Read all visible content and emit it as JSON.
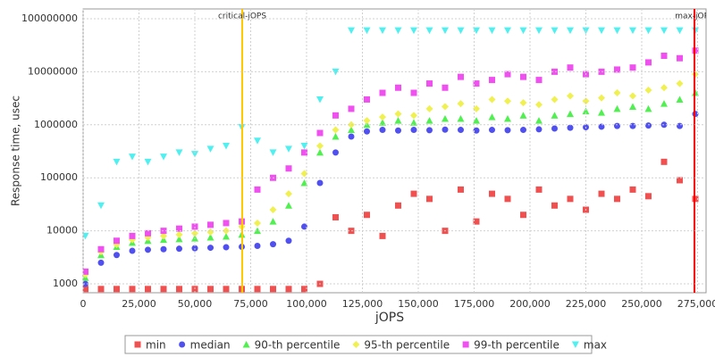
{
  "chart_data": {
    "type": "scatter",
    "ylabel": "Response time, usec",
    "xlabel": "jOPS",
    "log_y": true,
    "grid": true,
    "legend": "bottom",
    "xlim": [
      0,
      278800
    ],
    "ylim": [
      680,
      153000000
    ],
    "xticks": [
      0,
      {
        "value": 25000,
        "label": "25,000"
      },
      {
        "value": 50000,
        "label": "50,000"
      },
      {
        "value": 75000,
        "label": "75,000"
      },
      {
        "value": 100000,
        "label": "100,000"
      },
      {
        "value": 125000,
        "label": "125,000"
      },
      {
        "value": 150000,
        "label": "150,000"
      },
      {
        "value": 175000,
        "label": "175,000"
      },
      {
        "value": 200000,
        "label": "200,000"
      },
      {
        "value": 225000,
        "label": "225,000"
      },
      {
        "value": 250000,
        "label": "250,000"
      },
      {
        "value": 275000,
        "label": "275,000"
      }
    ],
    "yticks": [
      1000,
      10000,
      100000,
      1000000,
      10000000,
      100000000
    ],
    "vlines": [
      {
        "label": "critical-jOPS",
        "value": 71200,
        "color": "#ffc800"
      },
      {
        "label": "max-jOPS",
        "value": 273600,
        "color": "#ff0000"
      }
    ],
    "x": [
      1000,
      8000,
      15000,
      22000,
      29000,
      36000,
      43000,
      50000,
      57000,
      64000,
      71000,
      78000,
      85000,
      92000,
      99000,
      106000,
      113000,
      120000,
      127000,
      134000,
      141000,
      148000,
      155000,
      162000,
      169000,
      176000,
      183000,
      190000,
      197000,
      204000,
      211000,
      218000,
      225000,
      232000,
      239000,
      246000,
      253000,
      260000,
      267000,
      274000
    ],
    "series": [
      {
        "name": "min",
        "color": "#f05050",
        "marker": "square",
        "values": [
          800,
          800,
          800,
          800,
          800,
          800,
          800,
          800,
          800,
          800,
          800,
          800,
          800,
          800,
          800,
          1000,
          18000,
          10000,
          20000,
          8000,
          30000,
          50000,
          40000,
          10000,
          60000,
          15000,
          50000,
          40000,
          20000,
          60000,
          30000,
          40000,
          25000,
          50000,
          40000,
          60000,
          45000,
          200000,
          90000,
          40000
        ]
      },
      {
        "name": "median",
        "color": "#5050f0",
        "marker": "circle",
        "values": [
          1000,
          2500,
          3500,
          4200,
          4400,
          4500,
          4600,
          4700,
          4800,
          4900,
          5000,
          5200,
          5600,
          6500,
          12000,
          80000,
          300000,
          600000,
          750000,
          800000,
          780000,
          800000,
          790000,
          810000,
          800000,
          780000,
          800000,
          790000,
          800000,
          820000,
          850000,
          880000,
          900000,
          920000,
          950000,
          950000,
          970000,
          1000000,
          950000,
          1600000
        ]
      },
      {
        "name": "90-th percentile",
        "color": "#50f050",
        "marker": "triangle",
        "values": [
          1300,
          3500,
          5000,
          6000,
          6500,
          6800,
          7000,
          7200,
          7500,
          7800,
          8500,
          10000,
          15000,
          30000,
          80000,
          300000,
          600000,
          800000,
          1000000,
          1100000,
          1200000,
          1100000,
          1200000,
          1300000,
          1300000,
          1200000,
          1400000,
          1300000,
          1500000,
          1200000,
          1500000,
          1600000,
          1800000,
          1700000,
          2000000,
          2200000,
          2000000,
          2500000,
          3000000,
          4000000
        ]
      },
      {
        "name": "95-th percentile",
        "color": "#f0f050",
        "marker": "diamond",
        "values": [
          1500,
          4000,
          5500,
          6800,
          7500,
          8000,
          8500,
          9000,
          9500,
          10000,
          12000,
          14000,
          25000,
          50000,
          120000,
          400000,
          800000,
          1000000,
          1200000,
          1400000,
          1600000,
          1500000,
          2000000,
          2200000,
          2500000,
          2000000,
          3000000,
          2800000,
          2600000,
          2400000,
          3000000,
          3500000,
          2800000,
          3200000,
          4000000,
          3500000,
          4500000,
          5000000,
          6000000,
          9000000
        ]
      },
      {
        "name": "99-th percentile",
        "color": "#f050f0",
        "marker": "square",
        "values": [
          1700,
          4500,
          6500,
          8000,
          9000,
          10000,
          11000,
          12000,
          13000,
          14000,
          15000,
          60000,
          100000,
          150000,
          300000,
          700000,
          1500000,
          2000000,
          3000000,
          4000000,
          5000000,
          4000000,
          6000000,
          5000000,
          8000000,
          6000000,
          7000000,
          9000000,
          8000000,
          7000000,
          10000000,
          12000000,
          9000000,
          10000000,
          11000000,
          12000000,
          15000000,
          20000000,
          18000000,
          25000000
        ]
      },
      {
        "name": "max",
        "color": "#50f0f0",
        "marker": "down-triangle",
        "values": [
          8000,
          30000,
          200000,
          250000,
          200000,
          250000,
          300000,
          280000,
          350000,
          400000,
          900000,
          500000,
          300000,
          350000,
          400000,
          3000000,
          10000000,
          60000000,
          60000000,
          60000000,
          60000000,
          60000000,
          60000000,
          60000000,
          60000000,
          60000000,
          60000000,
          60000000,
          60000000,
          60000000,
          60000000,
          60000000,
          60000000,
          60000000,
          60000000,
          60000000,
          60000000,
          60000000,
          60000000,
          60000000
        ]
      }
    ]
  }
}
